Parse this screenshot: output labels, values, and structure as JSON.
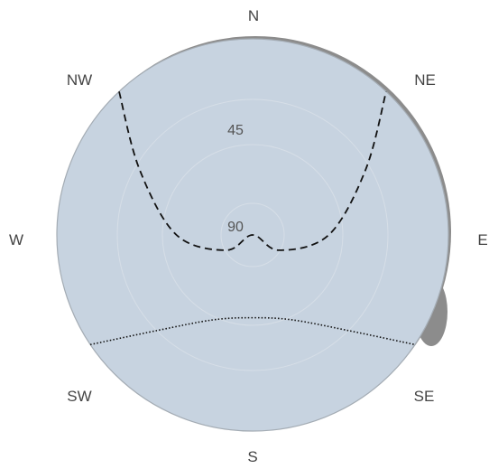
{
  "chart_data": {
    "type": "polar-sun-path",
    "title": "",
    "compass_labels": [
      "N",
      "NE",
      "E",
      "SE",
      "S",
      "SW",
      "W",
      "NW"
    ],
    "ring_labels": [
      "45",
      "90"
    ],
    "colors": {
      "disk_fill": "#c7d3e0",
      "disk_stroke": "#a4acb4",
      "shadow": "#8c8c8c",
      "label": "#444444",
      "path_line": "#111111"
    },
    "series": [
      {
        "style": "dashed",
        "points": [
          {
            "azimuth": 317,
            "altitude": 0
          },
          {
            "azimuth": 300,
            "altitude": 30
          },
          {
            "azimuth": 270,
            "altitude": 55
          },
          {
            "azimuth": 240,
            "altitude": 76
          },
          {
            "azimuth": 180,
            "altitude": 90
          },
          {
            "azimuth": 120,
            "altitude": 76
          },
          {
            "azimuth": 90,
            "altitude": 55
          },
          {
            "azimuth": 60,
            "altitude": 30
          },
          {
            "azimuth": 43,
            "altitude": 0
          }
        ]
      },
      {
        "style": "dotted",
        "points": [
          {
            "azimuth": 236,
            "altitude": 0
          },
          {
            "azimuth": 225,
            "altitude": 28
          },
          {
            "azimuth": 205,
            "altitude": 47
          },
          {
            "azimuth": 180,
            "altitude": 52
          },
          {
            "azimuth": 155,
            "altitude": 47
          },
          {
            "azimuth": 135,
            "altitude": 28
          },
          {
            "azimuth": 124,
            "altitude": 0
          }
        ]
      }
    ]
  }
}
